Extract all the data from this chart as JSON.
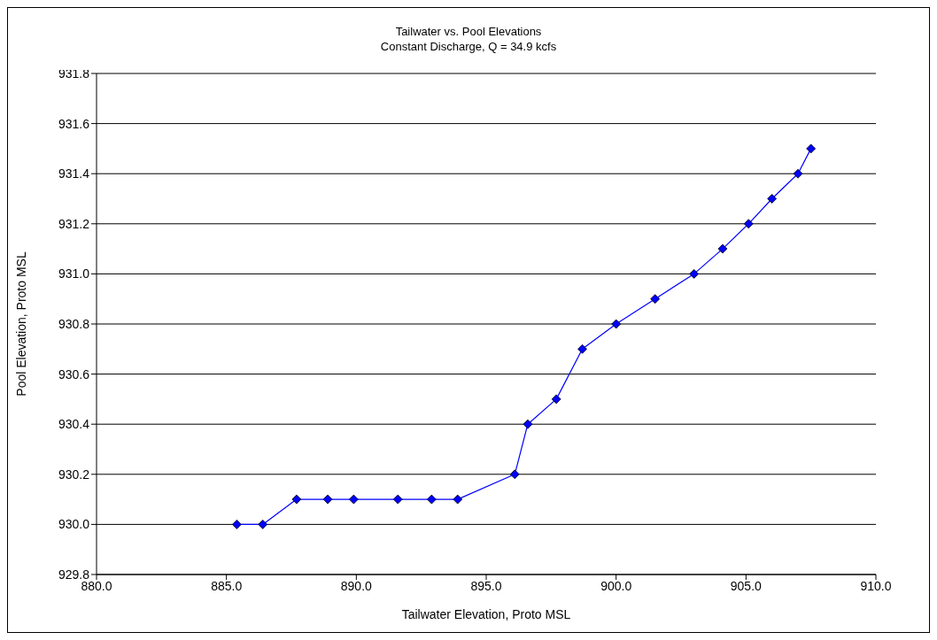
{
  "chart_data": {
    "type": "line",
    "title": "Tailwater vs. Pool Elevations",
    "subtitle": "Constant Discharge, Q = 34.9 kcfs",
    "xlabel": "Tailwater Elevation, Proto MSL",
    "ylabel": "Pool Elevation, Proto MSL",
    "x": [
      885.4,
      886.4,
      887.7,
      888.9,
      889.9,
      891.6,
      892.9,
      893.9,
      896.1,
      896.6,
      897.7,
      898.7,
      900.0,
      901.5,
      903.0,
      904.1,
      905.1,
      906.0,
      907.0,
      907.5
    ],
    "series": [
      {
        "color": "#0000ff",
        "values": [
          930.0,
          930.0,
          930.1,
          930.1,
          930.1,
          930.1,
          930.1,
          930.1,
          930.2,
          930.4,
          930.5,
          930.7,
          930.8,
          930.9,
          931.0,
          931.1,
          931.2,
          931.3,
          931.4,
          931.5
        ]
      }
    ],
    "xlim": [
      880,
      910
    ],
    "xticks": [
      {
        "value": 880,
        "label": "880.0"
      },
      {
        "value": 885,
        "label": "885.0"
      },
      {
        "value": 890,
        "label": "890.0"
      },
      {
        "value": 895,
        "label": "895.0"
      },
      {
        "value": 900,
        "label": "900.0"
      },
      {
        "value": 905,
        "label": "905.0"
      },
      {
        "value": 910,
        "label": "910.0"
      }
    ],
    "ylim": [
      929.8,
      931.8
    ],
    "yticks": [
      {
        "value": 929.8,
        "label": "929.8"
      },
      {
        "value": 930.0,
        "label": "930.0"
      },
      {
        "value": 930.2,
        "label": "930.2"
      },
      {
        "value": 930.4,
        "label": "930.4"
      },
      {
        "value": 930.6,
        "label": "930.6"
      },
      {
        "value": 930.8,
        "label": "930.8"
      },
      {
        "value": 931.0,
        "label": "931.0"
      },
      {
        "value": 931.2,
        "label": "931.2"
      },
      {
        "value": 931.4,
        "label": "931.4"
      },
      {
        "value": 931.6,
        "label": "931.6"
      },
      {
        "value": 931.8,
        "label": "931.8"
      }
    ],
    "grid": "y",
    "marker": "diamond",
    "line_style": "solid"
  }
}
